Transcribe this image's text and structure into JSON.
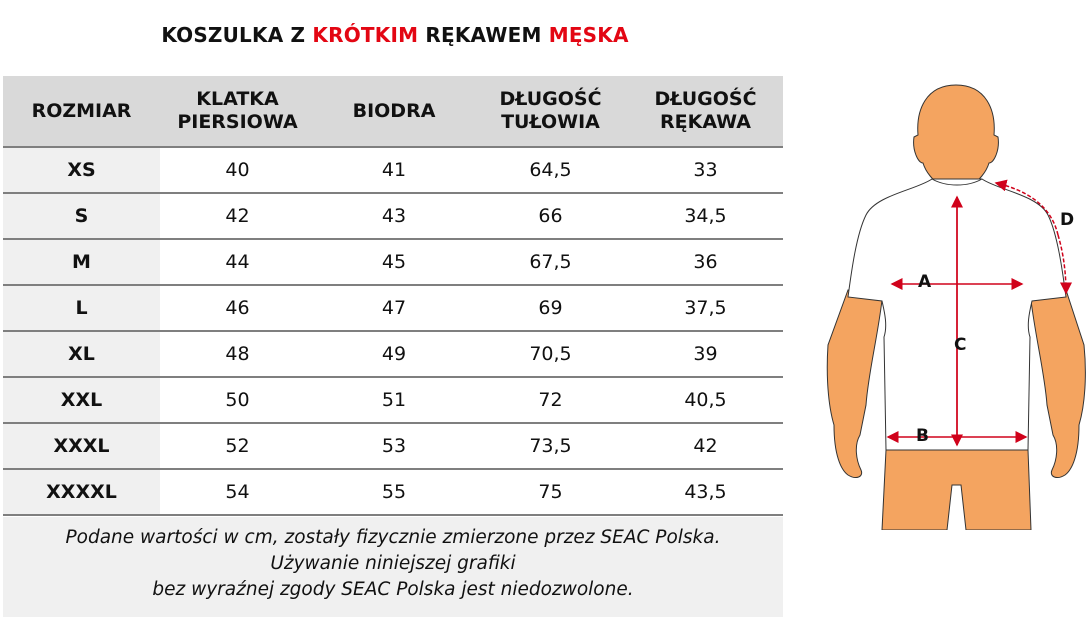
{
  "title": {
    "parts": [
      {
        "text": "KOSZULKA Z ",
        "color": "#111111"
      },
      {
        "text": "KRÓTKIM",
        "color": "#e30613"
      },
      {
        "text": " RĘKAWEM ",
        "color": "#111111"
      },
      {
        "text": "MĘSKA",
        "color": "#e30613"
      }
    ]
  },
  "table": {
    "headers": [
      {
        "line1": "ROZMIAR",
        "line2": ""
      },
      {
        "line1": "KLATKA",
        "line2": "PIERSIOWA"
      },
      {
        "line1": "BIODRA",
        "line2": ""
      },
      {
        "line1": "DŁUGOŚĆ",
        "line2": "TUŁOWIA"
      },
      {
        "line1": "DŁUGOŚĆ",
        "line2": "RĘKAWA"
      }
    ],
    "rows": [
      {
        "size": "XS",
        "chest": "40",
        "hips": "41",
        "torso": "64,5",
        "sleeve": "33"
      },
      {
        "size": "S",
        "chest": "42",
        "hips": "43",
        "torso": "66",
        "sleeve": "34,5"
      },
      {
        "size": "M",
        "chest": "44",
        "hips": "45",
        "torso": "67,5",
        "sleeve": "36"
      },
      {
        "size": "L",
        "chest": "46",
        "hips": "47",
        "torso": "69",
        "sleeve": "37,5"
      },
      {
        "size": "XL",
        "chest": "48",
        "hips": "49",
        "torso": "70,5",
        "sleeve": "39"
      },
      {
        "size": "XXL",
        "chest": "50",
        "hips": "51",
        "torso": "72",
        "sleeve": "40,5"
      },
      {
        "size": "XXXL",
        "chest": "52",
        "hips": "53",
        "torso": "73,5",
        "sleeve": "42"
      },
      {
        "size": "XXXXL",
        "chest": "54",
        "hips": "55",
        "torso": "75",
        "sleeve": "43,5"
      }
    ]
  },
  "footer": {
    "line1": "Podane wartości w cm, zostały fizycznie zmierzone przez SEAC Polska.",
    "line2": "Używanie niniejszej grafiki",
    "line3": "bez wyraźnej zgody SEAC Polska jest niedozwolone."
  },
  "figure": {
    "labels": {
      "a": "A",
      "b": "B",
      "c": "C",
      "d": "D"
    },
    "colors": {
      "skin": "#f4a460",
      "arrow": "#d0021b",
      "outline": "#333333"
    }
  }
}
